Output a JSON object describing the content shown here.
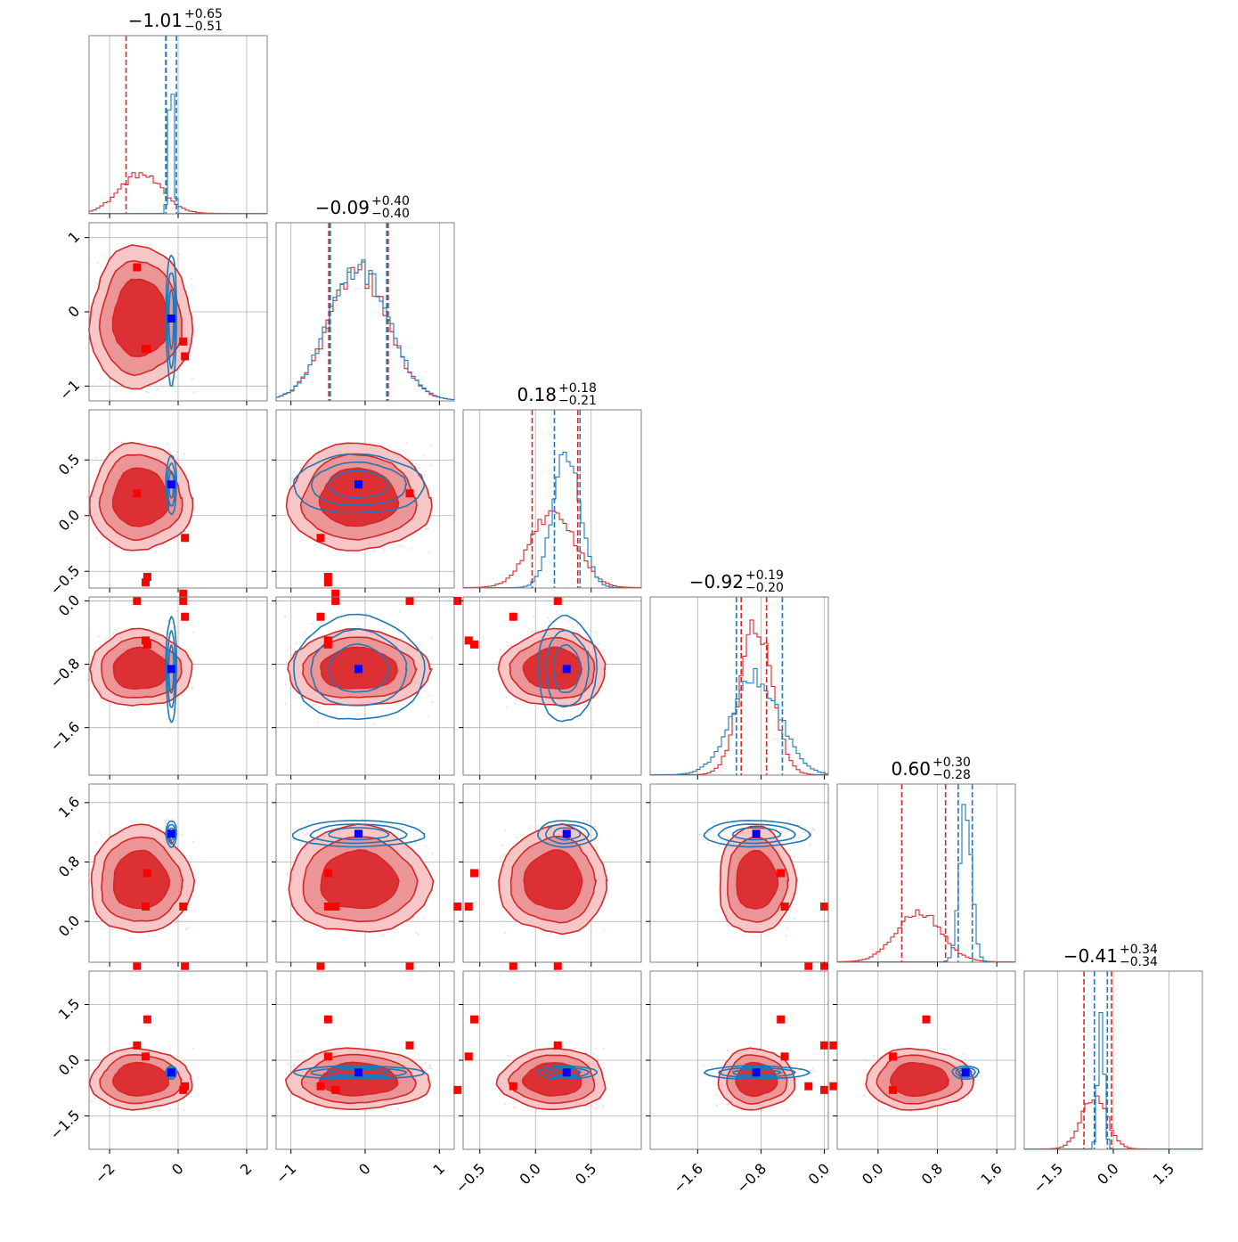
{
  "figure": {
    "type": "corner-plot",
    "n_params": 6,
    "series_colors": {
      "red": "#d62728",
      "blue": "#1f77b4"
    },
    "marker_colors": {
      "red": "#ff0000",
      "blue": "#0000ff"
    }
  },
  "chart_data": {
    "type": "corner",
    "titles": [
      {
        "median": "−1.01",
        "plus": "+0.65",
        "minus": "−0.51"
      },
      {
        "median": "−0.09",
        "plus": "+0.40",
        "minus": "−0.40"
      },
      {
        "median": "0.18",
        "plus": "+0.18",
        "minus": "−0.21"
      },
      {
        "median": "−0.92",
        "plus": "+0.19",
        "minus": "−0.20"
      },
      {
        "median": "0.60",
        "plus": "+0.30",
        "minus": "−0.28"
      },
      {
        "median": "−0.41",
        "plus": "+0.34",
        "minus": "−0.34"
      }
    ],
    "params": [
      {
        "range": [
          -2.6,
          2.6
        ],
        "ticks": [
          -2,
          0,
          2
        ],
        "tick_labels": [
          "−2",
          "0",
          "2"
        ]
      },
      {
        "range": [
          -1.2,
          1.2
        ],
        "ticks": [
          -1,
          0,
          1
        ],
        "tick_labels": [
          "−1",
          "0",
          "1"
        ]
      },
      {
        "range": [
          -0.65,
          0.95
        ],
        "ticks": [
          -0.5,
          0.0,
          0.5
        ],
        "tick_labels": [
          "−0.5",
          "0.0",
          "0.5"
        ]
      },
      {
        "range": [
          -2.2,
          0.05
        ],
        "ticks": [
          -1.6,
          -0.8,
          0.0
        ],
        "tick_labels": [
          "−1.6",
          "−0.8",
          "0.0"
        ]
      },
      {
        "range": [
          -0.55,
          1.85
        ],
        "ticks": [
          0.0,
          0.8,
          1.6
        ],
        "tick_labels": [
          "0.0",
          "0.8",
          "1.6"
        ]
      },
      {
        "range": [
          -2.4,
          2.4
        ],
        "ticks": [
          -1.5,
          0.0,
          1.5
        ],
        "tick_labels": [
          "−1.5",
          "0.0",
          "1.5"
        ]
      }
    ],
    "red": {
      "center": [
        -1.1,
        -0.09,
        0.16,
        -0.86,
        0.55,
        -0.52
      ],
      "sigma": [
        0.62,
        0.4,
        0.2,
        0.2,
        0.3,
        0.34
      ],
      "quantile_lines": [
        [
          -1.52,
          -0.36
        ],
        [
          -0.49,
          0.31
        ],
        [
          -0.03,
          0.38
        ],
        [
          -1.05,
          -0.73
        ],
        [
          0.32,
          0.91
        ],
        [
          -0.79,
          -0.05
        ]
      ],
      "hist_peak": [
        0.22,
        0.72,
        0.42,
        0.85,
        0.28,
        0.3
      ]
    },
    "blue": {
      "center": [
        -0.2,
        -0.09,
        0.28,
        -0.86,
        1.18,
        -0.33
      ],
      "sigma": [
        0.07,
        0.4,
        0.12,
        0.3,
        0.08,
        0.08
      ],
      "quantile_lines": [
        [
          -0.35,
          -0.05
        ],
        [
          -0.47,
          0.29
        ],
        [
          0.17,
          0.4
        ],
        [
          -1.11,
          -0.53
        ],
        [
          1.08,
          1.27
        ],
        [
          -0.51,
          -0.16
        ]
      ],
      "hist_peak": [
        0.78,
        0.75,
        0.78,
        0.55,
        0.88,
        0.85
      ]
    },
    "red_markers": [
      [
        -1.2,
        0.6,
        0.2,
        0.0,
        -0.6,
        0.4
      ],
      [
        -0.95,
        -0.5,
        -0.6,
        -0.5,
        0.2,
        0.1
      ],
      [
        0.2,
        -0.6,
        -0.2,
        -0.2,
        -0.6,
        -0.7
      ],
      [
        -0.9,
        -0.5,
        -0.55,
        -0.55,
        0.65,
        1.1
      ],
      [
        0.15,
        -0.4,
        -0.7,
        0.0,
        0.2,
        -0.8
      ]
    ],
    "blue_marker": [
      -0.2,
      -0.09,
      0.28,
      -0.86,
      1.18,
      -0.33
    ]
  }
}
